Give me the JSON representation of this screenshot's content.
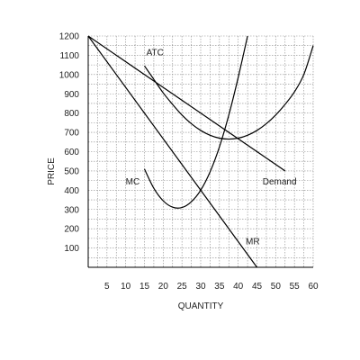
{
  "chart_data": {
    "type": "line",
    "xlabel": "QUANTITY",
    "ylabel": "PRICE",
    "xlim": [
      0,
      60
    ],
    "ylim": [
      0,
      1200
    ],
    "x_ticks": [
      5,
      10,
      15,
      20,
      25,
      30,
      35,
      40,
      45,
      50,
      55,
      60
    ],
    "y_ticks": [
      100,
      200,
      300,
      400,
      500,
      600,
      700,
      800,
      900,
      1000,
      1100,
      1200
    ],
    "grid": true,
    "grid_step": {
      "x": 2.5,
      "y": 50
    },
    "series": [
      {
        "name": "Demand",
        "color": "#000000",
        "x": [
          0,
          52.5
        ],
        "y": [
          1200,
          500
        ]
      },
      {
        "name": "MR",
        "color": "#000000",
        "x": [
          0,
          45
        ],
        "y": [
          1200,
          0
        ]
      },
      {
        "name": "MC",
        "color": "#000000",
        "x": [
          15,
          17.5,
          20,
          22.5,
          25,
          27.5,
          30,
          32.5,
          35,
          37.5,
          40,
          42.5
        ],
        "y": [
          510,
          410,
          345,
          312,
          310,
          340,
          400,
          495,
          625,
          790,
          985,
          1200
        ]
      },
      {
        "name": "ATC",
        "color": "#000000",
        "x": [
          15,
          17.5,
          20,
          22.5,
          25,
          27.5,
          30,
          32.5,
          35,
          37.5,
          40,
          42.5,
          45,
          47.5,
          50,
          52.5,
          55,
          57.5,
          60
        ],
        "y": [
          1045,
          975,
          905,
          845,
          790,
          745,
          710,
          685,
          670,
          665,
          670,
          685,
          710,
          745,
          790,
          845,
          910,
          1000,
          1150
        ]
      }
    ],
    "labels": [
      {
        "text": "ATC",
        "x": 15.5,
        "y": 1100
      },
      {
        "text": "MC",
        "x": 10,
        "y": 430
      },
      {
        "text": "Demand",
        "x": 46.5,
        "y": 430
      },
      {
        "text": "MR",
        "x": 42,
        "y": 120
      }
    ]
  }
}
